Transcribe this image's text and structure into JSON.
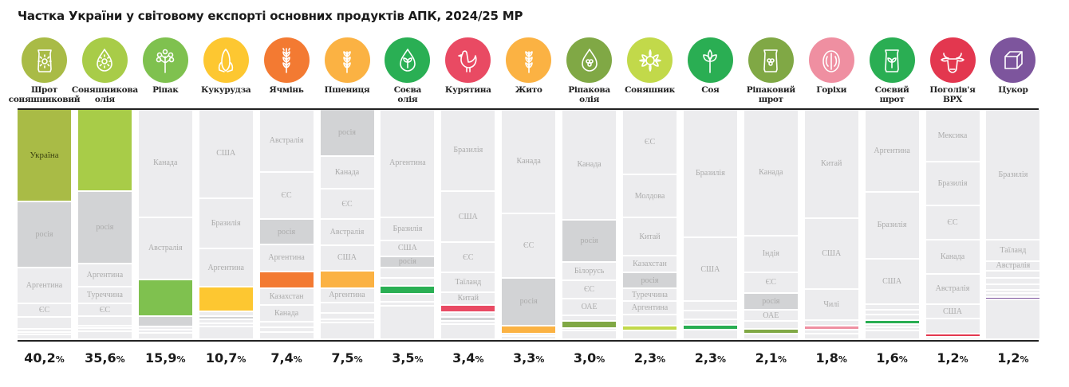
{
  "title": "Частка України у світовому експорті основних продуктів АПК, 2024/25 МР",
  "colors": {
    "segment_light": "#ececee",
    "segment_dark": "#d2d3d5",
    "label": "#ababab"
  },
  "chart_data": {
    "type": "bar",
    "stacked": true,
    "title": "Частка України у світовому експорті основних продуктів АПК, 2024/25 МР",
    "unit": "%",
    "ylim": [
      0,
      100
    ],
    "highlight": "Україна",
    "products": [
      {
        "name": "Шрот\nсоняшниковий",
        "icon": "bag-sunflower-icon",
        "color": "#a9bb46",
        "share": "40,2",
        "ukraine_label": "Україна",
        "segments": [
          {
            "label": "Україна",
            "value": 40.2,
            "tone": "ukraine"
          },
          {
            "label": "росія",
            "value": 28.5,
            "tone": "dark"
          },
          {
            "label": "Аргентина",
            "value": 15.8,
            "tone": "light"
          },
          {
            "label": "ЄС",
            "value": 5.8,
            "tone": "light"
          },
          {
            "value": 5.2,
            "tone": "light"
          },
          {
            "value": 1.3,
            "tone": "light"
          },
          {
            "value": 1.2,
            "tone": "light"
          },
          {
            "value": 2,
            "tone": "light"
          }
        ]
      },
      {
        "name": "Соняшникова\nолія",
        "icon": "oil-drop-sunflower-icon",
        "color": "#a8cc48",
        "share": "35,6",
        "segments": [
          {
            "value": 35.6,
            "tone": "ukraine"
          },
          {
            "label": "росія",
            "value": 31.5,
            "tone": "dark"
          },
          {
            "label": "Аргентина",
            "value": 10,
            "tone": "light"
          },
          {
            "label": "Туреччина",
            "value": 7.5,
            "tone": "light"
          },
          {
            "label": "ЄС",
            "value": 5.5,
            "tone": "light"
          },
          {
            "value": 4,
            "tone": "light"
          },
          {
            "value": 1.2,
            "tone": "light"
          },
          {
            "value": 1.2,
            "tone": "light"
          },
          {
            "value": 3.5,
            "tone": "light"
          }
        ]
      },
      {
        "name": "Ріпак",
        "icon": "rapeseed-icon",
        "color": "#7fc14f",
        "share": "15,9",
        "segments": [
          {
            "label": "Канада",
            "value": 47,
            "tone": "light"
          },
          {
            "label": "Австралія",
            "value": 27,
            "tone": "light"
          },
          {
            "value": 15.9,
            "tone": "ukraine"
          },
          {
            "value": 4.5,
            "tone": "dark"
          },
          {
            "value": 1.6,
            "tone": "light"
          },
          {
            "value": 1.4,
            "tone": "light"
          },
          {
            "value": 2.6,
            "tone": "light"
          }
        ]
      },
      {
        "name": "Кукурудза",
        "icon": "corn-icon",
        "color": "#fdc731",
        "share": "10,7",
        "segments": [
          {
            "label": "США",
            "value": 38.7,
            "tone": "light"
          },
          {
            "label": "Бразилія",
            "value": 22,
            "tone": "light"
          },
          {
            "label": "Аргентина",
            "value": 16.4,
            "tone": "light"
          },
          {
            "value": 10.7,
            "tone": "ukraine"
          },
          {
            "value": 2,
            "tone": "light"
          },
          {
            "value": 1.5,
            "tone": "dark"
          },
          {
            "value": 1.8,
            "tone": "light"
          },
          {
            "value": 1.5,
            "tone": "light"
          },
          {
            "value": 5.4,
            "tone": "light"
          }
        ]
      },
      {
        "name": "Ячмінь",
        "icon": "barley-icon",
        "color": "#f37a32",
        "share": "7,4",
        "segments": [
          {
            "label": "Австралія",
            "value": 27.4,
            "tone": "light"
          },
          {
            "label": "ЄС",
            "value": 20.5,
            "tone": "light"
          },
          {
            "label": "росія",
            "value": 11,
            "tone": "dark"
          },
          {
            "label": "Аргентина",
            "value": 11.6,
            "tone": "light"
          },
          {
            "value": 7.4,
            "tone": "ukraine"
          },
          {
            "label": "Казахстан",
            "value": 7.2,
            "tone": "light"
          },
          {
            "label": "Канада",
            "value": 7.2,
            "tone": "light"
          },
          {
            "value": 2.5,
            "tone": "light"
          },
          {
            "value": 2,
            "tone": "light"
          },
          {
            "value": 3.2,
            "tone": "light"
          }
        ]
      },
      {
        "name": "Пшениця",
        "icon": "wheat-icon",
        "color": "#fbb243",
        "share": "7,5",
        "segments": [
          {
            "label": "росія",
            "value": 20.5,
            "tone": "dark"
          },
          {
            "label": "Канада",
            "value": 14,
            "tone": "light"
          },
          {
            "label": "ЄС",
            "value": 13.4,
            "tone": "light"
          },
          {
            "label": "Австралія",
            "value": 11.3,
            "tone": "light"
          },
          {
            "label": "США",
            "value": 11,
            "tone": "light"
          },
          {
            "value": 7.5,
            "tone": "ukraine"
          },
          {
            "label": "Аргентина",
            "value": 6.5,
            "tone": "light"
          },
          {
            "value": 4.5,
            "tone": "light"
          },
          {
            "value": 2.5,
            "tone": "light"
          },
          {
            "value": 1.5,
            "tone": "light"
          },
          {
            "value": 7.3,
            "tone": "light"
          }
        ]
      },
      {
        "name": "Соєва\nолія",
        "icon": "oil-drop-soy-icon",
        "color": "#2aaf54",
        "share": "3,5",
        "segments": [
          {
            "label": "Аргентина",
            "value": 47,
            "tone": "light"
          },
          {
            "label": "Бразилія",
            "value": 10,
            "tone": "light"
          },
          {
            "label": "США",
            "value": 7,
            "tone": "light"
          },
          {
            "label": "росія",
            "value": 4.8,
            "tone": "dark"
          },
          {
            "value": 4.5,
            "tone": "light"
          },
          {
            "value": 3.5,
            "tone": "light"
          },
          {
            "value": 3.5,
            "tone": "ukraine"
          },
          {
            "value": 3.5,
            "tone": "light"
          },
          {
            "value": 1.5,
            "tone": "light"
          },
          {
            "value": 14.7,
            "tone": "light"
          }
        ]
      },
      {
        "name": "Курятина",
        "icon": "chicken-icon",
        "color": "#e94a63",
        "share": "3,4",
        "segments": [
          {
            "label": "Бразилія",
            "value": 35.6,
            "tone": "light"
          },
          {
            "label": "США",
            "value": 22.3,
            "tone": "light"
          },
          {
            "label": "ЄС",
            "value": 13,
            "tone": "light"
          },
          {
            "label": "Таїланд",
            "value": 8.6,
            "tone": "light"
          },
          {
            "label": "Китай",
            "value": 5.5,
            "tone": "light"
          },
          {
            "value": 3.4,
            "tone": "ukraine"
          },
          {
            "value": 2,
            "tone": "light"
          },
          {
            "value": 1.5,
            "tone": "dark"
          },
          {
            "value": 1.5,
            "tone": "light"
          },
          {
            "value": 6.6,
            "tone": "light"
          }
        ]
      },
      {
        "name": "Жито",
        "icon": "rye-icon",
        "color": "#fbb243",
        "share": "3,3",
        "segments": [
          {
            "label": "Канада",
            "value": 45.5,
            "tone": "light"
          },
          {
            "label": "ЄС",
            "value": 27.7,
            "tone": "light"
          },
          {
            "label": "росія",
            "value": 21,
            "tone": "dark"
          },
          {
            "value": 3.3,
            "tone": "ukraine"
          },
          {
            "value": 1.2,
            "tone": "light"
          },
          {
            "value": 1.3,
            "tone": "light"
          }
        ]
      },
      {
        "name": "Ріпакова\nолія",
        "icon": "oil-drop-rapeseed-icon",
        "color": "#80a845",
        "share": "3,0",
        "segments": [
          {
            "label": "Канада",
            "value": 48,
            "tone": "light"
          },
          {
            "label": "росія",
            "value": 18.5,
            "tone": "dark"
          },
          {
            "label": "Білорусь",
            "value": 8,
            "tone": "light"
          },
          {
            "label": "ЄС",
            "value": 8,
            "tone": "light"
          },
          {
            "label": "ОАЕ",
            "value": 7,
            "tone": "light"
          },
          {
            "value": 2.5,
            "tone": "light"
          },
          {
            "value": 3,
            "tone": "ukraine"
          },
          {
            "value": 1.2,
            "tone": "light"
          },
          {
            "value": 3.8,
            "tone": "light"
          }
        ]
      },
      {
        "name": "Соняшник",
        "icon": "sunflower-icon",
        "color": "#c2d94a",
        "share": "2,3",
        "segments": [
          {
            "label": "ЄС",
            "value": 28.4,
            "tone": "light"
          },
          {
            "label": "Молдова",
            "value": 18.8,
            "tone": "light"
          },
          {
            "label": "Китай",
            "value": 16.4,
            "tone": "light"
          },
          {
            "label": "Казахстан",
            "value": 7.5,
            "tone": "light"
          },
          {
            "label": "росія",
            "value": 6.8,
            "tone": "dark"
          },
          {
            "label": "Туреччина",
            "value": 5.5,
            "tone": "light"
          },
          {
            "label": "Аргентина",
            "value": 5.8,
            "tone": "light"
          },
          {
            "value": 4.8,
            "tone": "light"
          },
          {
            "value": 2.3,
            "tone": "ukraine"
          },
          {
            "value": 3.7,
            "tone": "light"
          }
        ]
      },
      {
        "name": "Соя",
        "icon": "soy-sprout-icon",
        "color": "#2aae53",
        "share": "2,3",
        "segments": [
          {
            "label": "Бразилія",
            "value": 55.8,
            "tone": "light"
          },
          {
            "label": "США",
            "value": 27.7,
            "tone": "light"
          },
          {
            "value": 4,
            "tone": "light"
          },
          {
            "value": 3.8,
            "tone": "light"
          },
          {
            "value": 2.4,
            "tone": "light"
          },
          {
            "value": 2.3,
            "tone": "ukraine"
          },
          {
            "value": 4,
            "tone": "light"
          }
        ]
      },
      {
        "name": "Ріпаковий\nшрот",
        "icon": "bag-rapeseed-icon",
        "color": "#80a845",
        "share": "2,1",
        "segments": [
          {
            "label": "Канада",
            "value": 55,
            "tone": "light"
          },
          {
            "label": "Індія",
            "value": 15.8,
            "tone": "light"
          },
          {
            "label": "ЄС",
            "value": 9,
            "tone": "light"
          },
          {
            "label": "росія",
            "value": 7.5,
            "tone": "dark"
          },
          {
            "label": "ОАЕ",
            "value": 4.8,
            "tone": "light"
          },
          {
            "value": 3.4,
            "tone": "light"
          },
          {
            "value": 2.1,
            "tone": "ukraine"
          },
          {
            "value": 2.4,
            "tone": "light"
          }
        ]
      },
      {
        "name": "Горіхи",
        "icon": "walnut-icon",
        "color": "#ef8fa1",
        "share": "1,8",
        "segments": [
          {
            "label": "Китай",
            "value": 47.3,
            "tone": "light"
          },
          {
            "label": "США",
            "value": 30.8,
            "tone": "light"
          },
          {
            "label": "Чилі",
            "value": 13.7,
            "tone": "light"
          },
          {
            "value": 2.4,
            "tone": "light"
          },
          {
            "value": 1.8,
            "tone": "ukraine"
          },
          {
            "value": 1.6,
            "tone": "light"
          },
          {
            "value": 2.4,
            "tone": "light"
          }
        ]
      },
      {
        "name": "Соєвий\nшрот",
        "icon": "bag-soy-icon",
        "color": "#2aae53",
        "share": "1,6",
        "segments": [
          {
            "label": "Аргентина",
            "value": 36,
            "tone": "light"
          },
          {
            "label": "Бразилія",
            "value": 29,
            "tone": "light"
          },
          {
            "label": "США",
            "value": 19.9,
            "tone": "light"
          },
          {
            "value": 2.4,
            "tone": "light"
          },
          {
            "value": 2,
            "tone": "light"
          },
          {
            "value": 2.4,
            "tone": "light"
          },
          {
            "value": 1.6,
            "tone": "ukraine"
          },
          {
            "value": 1.6,
            "tone": "light"
          },
          {
            "value": 1.2,
            "tone": "light"
          },
          {
            "value": 3.9,
            "tone": "light"
          }
        ]
      },
      {
        "name": "Поголів'я\nВРХ",
        "icon": "cow-icon",
        "color": "#e3374f",
        "share": "1,2",
        "segments": [
          {
            "label": "Мексика",
            "value": 23,
            "tone": "light"
          },
          {
            "label": "Бразилія",
            "value": 18.8,
            "tone": "light"
          },
          {
            "label": "ЄС",
            "value": 15,
            "tone": "light"
          },
          {
            "label": "Канада",
            "value": 14.7,
            "tone": "light"
          },
          {
            "label": "Австралія",
            "value": 13.4,
            "tone": "light"
          },
          {
            "label": "США",
            "value": 6.2,
            "tone": "light"
          },
          {
            "value": 6.5,
            "tone": "light"
          },
          {
            "value": 1.2,
            "tone": "ukraine"
          },
          {
            "value": 1.2,
            "tone": "light"
          }
        ]
      },
      {
        "name": "Цукор",
        "icon": "sugar-cube-icon",
        "color": "#7d559d",
        "share": "1,2",
        "segments": [
          {
            "label": "Бразилія",
            "value": 56.8,
            "tone": "light"
          },
          {
            "label": "Таїланд",
            "value": 9.2,
            "tone": "light"
          },
          {
            "label": "Австралія",
            "value": 4.3,
            "tone": "light"
          },
          {
            "value": 3.2,
            "tone": "light"
          },
          {
            "value": 2.6,
            "tone": "light"
          },
          {
            "value": 2.3,
            "tone": "light"
          },
          {
            "value": 1.6,
            "tone": "light"
          },
          {
            "value": 1.6,
            "tone": "light"
          },
          {
            "value": 1.2,
            "tone": "ukraine"
          },
          {
            "value": 17.2,
            "tone": "light"
          }
        ]
      }
    ]
  }
}
